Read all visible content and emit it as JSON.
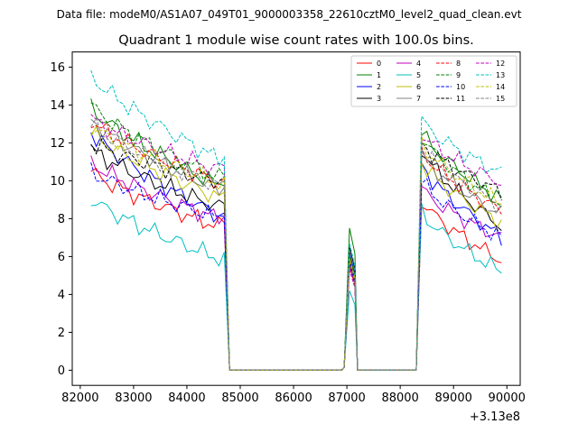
{
  "chart_data": {
    "type": "line",
    "suptitle": "Data file: modeM0/AS1A07_049T01_9000003358_22610cztM0_level2_quad_clean.evt",
    "title": "Quadrant 1 module wise count rates with 100.0s bins.",
    "xlabel": "",
    "ylabel": "",
    "x_offset_label": "+3.13e8",
    "xlim": [
      81850,
      90250
    ],
    "ylim": [
      -0.8,
      16.8
    ],
    "x_ticks": [
      82000,
      83000,
      84000,
      85000,
      86000,
      87000,
      88000,
      89000,
      90000
    ],
    "x_tick_labels": [
      "82000",
      "83000",
      "84000",
      "85000",
      "86000",
      "87000",
      "88000",
      "89000",
      "90000"
    ],
    "y_ticks": [
      0,
      2,
      4,
      6,
      8,
      10,
      12,
      14,
      16
    ],
    "y_tick_labels": [
      "0",
      "2",
      "4",
      "6",
      "8",
      "10",
      "12",
      "14",
      "16"
    ],
    "segments": [
      {
        "start": 82200,
        "end": 84700,
        "n": 26
      },
      {
        "start": 84800,
        "end": 86900,
        "n": 22,
        "gap": true
      },
      {
        "start": 86950,
        "end": 87150,
        "n": 3,
        "spike": true
      },
      {
        "start": 87200,
        "end": 88300,
        "n": 12,
        "gap": true
      },
      {
        "start": 88400,
        "end": 89900,
        "n": 16
      }
    ],
    "series": [
      {
        "name": "0",
        "color": "#ff0000",
        "dash": false,
        "seg1": [
          10.5,
          7.5
        ],
        "spike": 5.5,
        "seg3": [
          9.0,
          5.8
        ]
      },
      {
        "name": "1",
        "color": "#008000",
        "dash": false,
        "seg1": [
          13.9,
          9.6
        ],
        "spike": 7.5,
        "seg3": [
          12.6,
          9.0
        ]
      },
      {
        "name": "2",
        "color": "#0000ff",
        "dash": false,
        "seg1": [
          12.6,
          8.0
        ],
        "spike": 6.2,
        "seg3": [
          10.9,
          7.0
        ]
      },
      {
        "name": "3",
        "color": "#000000",
        "dash": false,
        "seg1": [
          11.7,
          8.5
        ],
        "spike": 6.5,
        "seg3": [
          11.7,
          7.6
        ]
      },
      {
        "name": "4",
        "color": "#bf00bf",
        "dash": false,
        "seg1": [
          11.0,
          7.9
        ],
        "spike": 5.7,
        "seg3": [
          9.6,
          7.0
        ]
      },
      {
        "name": "5",
        "color": "#00bfbf",
        "dash": false,
        "seg1": [
          9.1,
          5.8
        ],
        "spike": 4.2,
        "seg3": [
          8.4,
          5.2
        ]
      },
      {
        "name": "6",
        "color": "#bfbf00",
        "dash": false,
        "seg1": [
          12.6,
          9.0
        ],
        "spike": 5.9,
        "seg3": [
          11.0,
          7.8
        ]
      },
      {
        "name": "7",
        "color": "#808080",
        "dash": false,
        "seg1": [
          13.2,
          9.4
        ],
        "spike": 6.0,
        "seg3": [
          11.4,
          8.2
        ]
      },
      {
        "name": "8",
        "color": "#ff0000",
        "dash": true,
        "seg1": [
          13.2,
          9.8
        ],
        "spike": 5.9,
        "seg3": [
          11.6,
          8.4
        ]
      },
      {
        "name": "9",
        "color": "#008000",
        "dash": true,
        "seg1": [
          14.0,
          10.0
        ],
        "spike": 6.1,
        "seg3": [
          12.4,
          8.8
        ]
      },
      {
        "name": "10",
        "color": "#0000ff",
        "dash": true,
        "seg1": [
          10.5,
          8.0
        ],
        "spike": 5.6,
        "seg3": [
          10.0,
          7.0
        ]
      },
      {
        "name": "11",
        "color": "#000000",
        "dash": true,
        "seg1": [
          12.0,
          9.9
        ],
        "spike": 5.8,
        "seg3": [
          12.0,
          9.4
        ]
      },
      {
        "name": "12",
        "color": "#bf00bf",
        "dash": true,
        "seg1": [
          13.3,
          10.5
        ],
        "spike": 5.3,
        "seg3": [
          12.5,
          9.9
        ]
      },
      {
        "name": "13",
        "color": "#00bfbf",
        "dash": true,
        "seg1": [
          15.6,
          11.0
        ],
        "spike": 6.7,
        "seg3": [
          13.2,
          10.4
        ]
      },
      {
        "name": "14",
        "color": "#bfbf00",
        "dash": true,
        "seg1": [
          12.9,
          9.8
        ],
        "spike": 5.9,
        "seg3": [
          12.0,
          8.8
        ]
      },
      {
        "name": "15",
        "color": "#808080",
        "dash": true,
        "seg1": [
          13.0,
          9.6
        ],
        "spike": 5.7,
        "seg3": [
          11.8,
          8.6
        ]
      }
    ],
    "legend": {
      "location": "top-right",
      "columns": 4
    }
  }
}
